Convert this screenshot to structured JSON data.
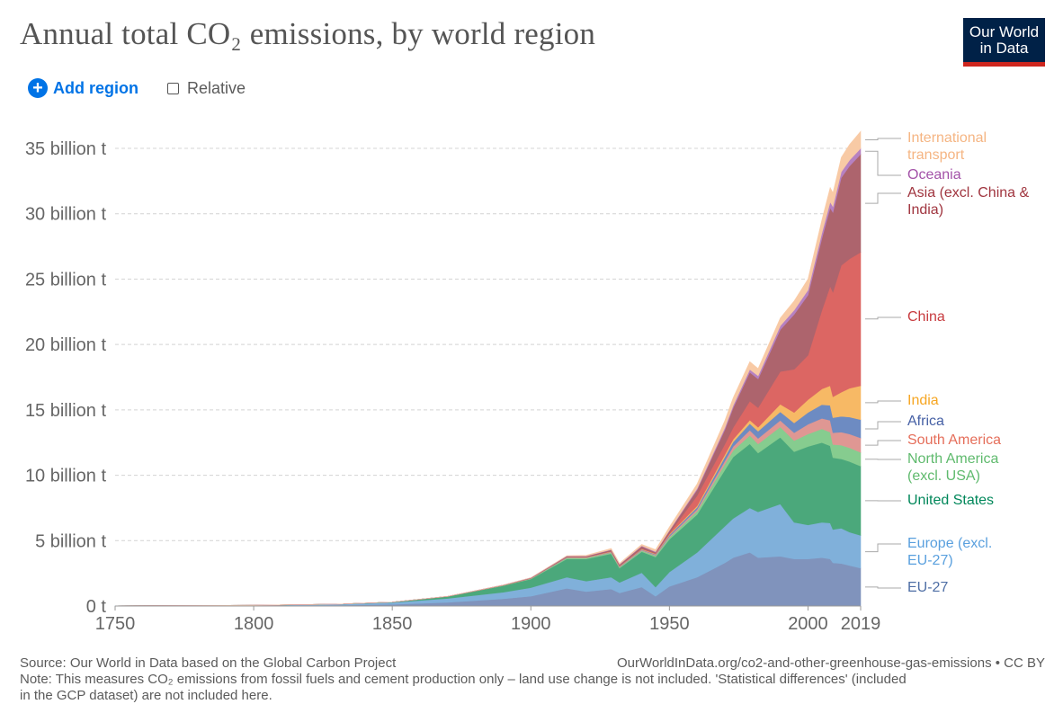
{
  "header": {
    "title": "Annual total CO₂ emissions, by world region",
    "logo_line1": "Our World",
    "logo_line2": "in Data"
  },
  "controls": {
    "add_region": "Add region",
    "relative": "Relative",
    "relative_checked": false
  },
  "footer": {
    "source": "Source: Our World in Data based on the Global Carbon Project",
    "url": "OurWorldInData.org/co2-and-other-greenhouse-gas-emissions • CC BY",
    "note": "Note: This measures CO₂ emissions from fossil fuels and cement production only – land use change is not included. 'Statistical differences' (included\nin the GCP dataset) are not included here."
  },
  "chart_data": {
    "type": "area",
    "stacked": true,
    "title": "Annual total CO₂ emissions, by world region",
    "xlim": [
      1750,
      2019
    ],
    "ylim": [
      0,
      37
    ],
    "y_ticks": [
      0,
      5,
      10,
      15,
      20,
      25,
      30,
      35
    ],
    "y_tick_labels": [
      "0 t",
      "5 billion t",
      "10 billion t",
      "15 billion t",
      "20 billion t",
      "25 billion t",
      "30 billion t",
      "35 billion t"
    ],
    "x_tick_labels": [
      "1750",
      "1800",
      "1850",
      "1900",
      "1950",
      "2000",
      "2019"
    ],
    "x_ticks": [
      1750,
      1800,
      1850,
      1900,
      1950,
      2000,
      2019
    ],
    "grid": "horizontal dashed",
    "legend": "right, inline labels",
    "x": [
      1750,
      1800,
      1830,
      1850,
      1870,
      1890,
      1900,
      1913,
      1920,
      1929,
      1932,
      1940,
      1945,
      1950,
      1960,
      1970,
      1973,
      1979,
      1982,
      1990,
      1995,
      2000,
      2005,
      2008,
      2009,
      2012,
      2015,
      2019
    ],
    "series": [
      {
        "name": "EU-27",
        "color": "#8093bc",
        "label_color": "#4e6ea5",
        "values": [
          0.003,
          0.02,
          0.06,
          0.12,
          0.28,
          0.55,
          0.75,
          1.35,
          1.1,
          1.3,
          1.0,
          1.45,
          0.75,
          1.5,
          2.2,
          3.3,
          3.7,
          4.1,
          3.7,
          3.8,
          3.6,
          3.6,
          3.7,
          3.6,
          3.3,
          3.25,
          3.1,
          2.9
        ]
      },
      {
        "name": "Europe (excl. EU-27)",
        "color": "#80b0da",
        "label_color": "#5aa0de",
        "values": [
          0.01,
          0.03,
          0.07,
          0.15,
          0.3,
          0.5,
          0.65,
          0.85,
          0.8,
          0.9,
          0.8,
          1.1,
          0.7,
          1.1,
          1.9,
          2.8,
          3.0,
          3.4,
          3.5,
          4.0,
          2.8,
          2.6,
          2.7,
          2.75,
          2.55,
          2.7,
          2.55,
          2.5
        ]
      },
      {
        "name": "United States",
        "color": "#4ba87b",
        "label_color": "#00875a",
        "values": [
          0,
          0.003,
          0.01,
          0.03,
          0.15,
          0.5,
          0.66,
          1.4,
          1.7,
          1.8,
          1.1,
          1.6,
          2.3,
          2.5,
          2.9,
          4.3,
          4.7,
          4.9,
          4.5,
          5.1,
          5.4,
          6.0,
          6.1,
          5.9,
          5.5,
          5.3,
          5.4,
          5.3
        ]
      },
      {
        "name": "North America (excl. USA)",
        "color": "#86cc8f",
        "label_color": "#5fba6d",
        "values": [
          0,
          0,
          0,
          0,
          0.005,
          0.02,
          0.03,
          0.08,
          0.07,
          0.08,
          0.06,
          0.09,
          0.1,
          0.15,
          0.25,
          0.45,
          0.5,
          0.65,
          0.7,
          0.8,
          0.85,
          0.95,
          1.05,
          1.05,
          1.0,
          1.05,
          1.05,
          1.05
        ]
      },
      {
        "name": "South America",
        "color": "#df9793",
        "label_color": "#e56e5a",
        "values": [
          0,
          0,
          0,
          0,
          0,
          0.005,
          0.01,
          0.02,
          0.02,
          0.03,
          0.03,
          0.04,
          0.05,
          0.08,
          0.15,
          0.25,
          0.3,
          0.4,
          0.42,
          0.5,
          0.6,
          0.75,
          0.8,
          0.9,
          0.9,
          1.0,
          1.05,
          1.1
        ]
      },
      {
        "name": "Africa",
        "color": "#6d8bc2",
        "label_color": "#4660a5",
        "values": [
          0,
          0,
          0,
          0,
          0,
          0.005,
          0.01,
          0.02,
          0.02,
          0.03,
          0.03,
          0.04,
          0.05,
          0.1,
          0.15,
          0.3,
          0.35,
          0.5,
          0.55,
          0.65,
          0.75,
          0.9,
          1.05,
          1.15,
          1.15,
          1.2,
          1.3,
          1.4
        ]
      },
      {
        "name": "India",
        "color": "#f7b965",
        "label_color": "#f6a623",
        "values": [
          0,
          0,
          0,
          0,
          0,
          0.005,
          0.01,
          0.02,
          0.02,
          0.03,
          0.03,
          0.04,
          0.04,
          0.06,
          0.11,
          0.18,
          0.2,
          0.27,
          0.3,
          0.58,
          0.8,
          0.98,
          1.2,
          1.5,
          1.6,
          1.85,
          2.2,
          2.6
        ]
      },
      {
        "name": "China",
        "color": "#dc6663",
        "label_color": "#c73a3e",
        "values": [
          0,
          0,
          0,
          0,
          0,
          0,
          0,
          0.01,
          0.01,
          0.02,
          0.02,
          0.03,
          0.03,
          0.08,
          0.78,
          0.8,
          0.9,
          1.45,
          1.5,
          2.5,
          3.3,
          3.4,
          6.0,
          7.6,
          8.0,
          9.7,
          9.9,
          10.2
        ]
      },
      {
        "name": "Asia (excl. China & India)",
        "color": "#ad646d",
        "label_color": "#a0353f",
        "values": [
          0,
          0,
          0,
          0,
          0.005,
          0.015,
          0.03,
          0.06,
          0.07,
          0.1,
          0.1,
          0.18,
          0.1,
          0.18,
          0.45,
          1.1,
          1.5,
          2.2,
          2.2,
          3.2,
          4.2,
          4.6,
          5.5,
          6.0,
          6.1,
          6.7,
          7.1,
          7.5
        ]
      },
      {
        "name": "Oceania",
        "color": "#b681c2",
        "label_color": "#a352a8",
        "values": [
          0,
          0,
          0,
          0,
          0.002,
          0.005,
          0.01,
          0.02,
          0.02,
          0.03,
          0.03,
          0.04,
          0.04,
          0.05,
          0.1,
          0.16,
          0.18,
          0.22,
          0.24,
          0.3,
          0.33,
          0.38,
          0.42,
          0.45,
          0.45,
          0.45,
          0.45,
          0.45
        ]
      },
      {
        "name": "International transport",
        "color": "#f8caa5",
        "label_color": "#f5b583",
        "values": [
          0,
          0,
          0,
          0,
          0,
          0,
          0,
          0.02,
          0.05,
          0.08,
          0.07,
          0.1,
          0.15,
          0.25,
          0.35,
          0.55,
          0.6,
          0.6,
          0.55,
          0.6,
          0.7,
          0.85,
          1.0,
          1.1,
          1.05,
          1.1,
          1.2,
          1.3
        ]
      }
    ],
    "labels": {
      "international_transport": "International\ntransport",
      "oceania": "Oceania",
      "asia": "Asia (excl. China &\nIndia)",
      "china": "China",
      "india": "India",
      "africa": "Africa",
      "south_america": "South America",
      "north_america": "North America\n(excl. USA)",
      "united_states": "United States",
      "europe": "Europe (excl.\nEU-27)",
      "eu27": "EU-27"
    }
  }
}
